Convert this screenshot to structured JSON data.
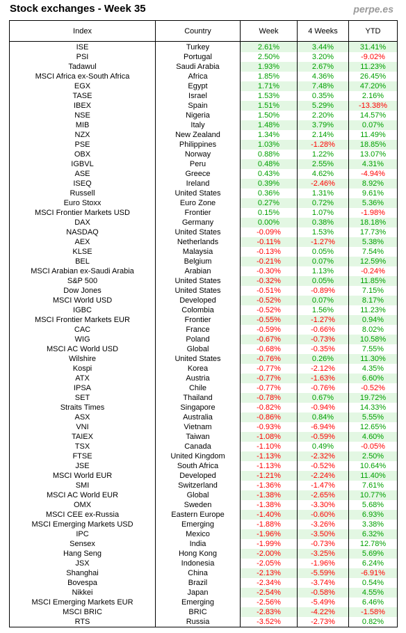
{
  "title": "Stock exchanges - Week 35",
  "brand": "perpe.es",
  "colors": {
    "positive": "#00a000",
    "negative": "#ff0000",
    "stripe": "#e3f7e3"
  },
  "headers": {
    "index": "Index",
    "country": "Country",
    "week": "Week",
    "four_weeks": "4 Weeks",
    "ytd": "YTD"
  },
  "rows": [
    [
      "ISE",
      "Turkey",
      "2.61%",
      "3.44%",
      "31.41%"
    ],
    [
      "PSI",
      "Portugal",
      "2.50%",
      "3.20%",
      "-9.02%"
    ],
    [
      "Tadawul",
      "Saudi Arabia",
      "1.93%",
      "2.67%",
      "11.23%"
    ],
    [
      "MSCI Africa ex-South Africa",
      "Africa",
      "1.85%",
      "4.36%",
      "26.45%"
    ],
    [
      "EGX",
      "Egypt",
      "1.71%",
      "7.48%",
      "47.20%"
    ],
    [
      "TASE",
      "Israel",
      "1.53%",
      "0.35%",
      "2.16%"
    ],
    [
      "IBEX",
      "Spain",
      "1.51%",
      "5.29%",
      "-13.38%"
    ],
    [
      "NSE",
      "Nigeria",
      "1.50%",
      "2.20%",
      "14.57%"
    ],
    [
      "MIB",
      "Italy",
      "1.48%",
      "3.79%",
      "0.07%"
    ],
    [
      "NZX",
      "New Zealand",
      "1.34%",
      "2.14%",
      "11.49%"
    ],
    [
      "PSE",
      "Philippines",
      "1.03%",
      "-1.28%",
      "18.85%"
    ],
    [
      "OBX",
      "Norway",
      "0.88%",
      "1.22%",
      "13.07%"
    ],
    [
      "IGBVL",
      "Peru",
      "0.48%",
      "2.55%",
      "4.31%"
    ],
    [
      "ASE",
      "Greece",
      "0.43%",
      "4.62%",
      "-4.94%"
    ],
    [
      "ISEQ",
      "Ireland",
      "0.39%",
      "-2.46%",
      "8.92%"
    ],
    [
      "Russell",
      "United States",
      "0.36%",
      "1.31%",
      "9.61%"
    ],
    [
      "Euro Stoxx",
      "Euro Zone",
      "0.27%",
      "0.72%",
      "5.36%"
    ],
    [
      "MSCI Frontier Markets USD",
      "Frontier",
      "0.15%",
      "1.07%",
      "-1.98%"
    ],
    [
      "DAX",
      "Germany",
      "0.00%",
      "0.38%",
      "18.18%"
    ],
    [
      "NASDAQ",
      "United States",
      "-0.09%",
      "1.53%",
      "17.73%"
    ],
    [
      "AEX",
      "Netherlands",
      "-0.11%",
      "-1.27%",
      "5.38%"
    ],
    [
      "KLSE",
      "Malaysia",
      "-0.13%",
      "0.05%",
      "7.54%"
    ],
    [
      "BEL",
      "Belgium",
      "-0.21%",
      "0.07%",
      "12.59%"
    ],
    [
      "MSCI Arabian ex-Saudi Arabia",
      "Arabian",
      "-0.30%",
      "1.13%",
      "-0.24%"
    ],
    [
      "S&P 500",
      "United States",
      "-0.32%",
      "0.05%",
      "11.85%"
    ],
    [
      "Dow Jones",
      "United States",
      "-0.51%",
      "-0.89%",
      "7.15%"
    ],
    [
      "MSCI World USD",
      "Developed",
      "-0.52%",
      "0.07%",
      "8.17%"
    ],
    [
      "IGBC",
      "Colombia",
      "-0.52%",
      "1.56%",
      "11.23%"
    ],
    [
      "MSCI Frontier Markets EUR",
      "Frontier",
      "-0.55%",
      "-1.27%",
      "0.94%"
    ],
    [
      "CAC",
      "France",
      "-0.59%",
      "-0.66%",
      "8.02%"
    ],
    [
      "WIG",
      "Poland",
      "-0.67%",
      "-0.73%",
      "10.58%"
    ],
    [
      "MSCI AC World USD",
      "Global",
      "-0.68%",
      "-0.35%",
      "7.55%"
    ],
    [
      "Wilshire",
      "United States",
      "-0.76%",
      "0.26%",
      "11.30%"
    ],
    [
      "Kospi",
      "Korea",
      "-0.77%",
      "-2.12%",
      "4.35%"
    ],
    [
      "ATX",
      "Austria",
      "-0.77%",
      "-1.63%",
      "6.60%"
    ],
    [
      "IPSA",
      "Chile",
      "-0.77%",
      "-0.76%",
      "-0.52%"
    ],
    [
      "SET",
      "Thailand",
      "-0.78%",
      "0.67%",
      "19.72%"
    ],
    [
      "Straits Times",
      "Singapore",
      "-0.82%",
      "-0.94%",
      "14.33%"
    ],
    [
      "ASX",
      "Australia",
      "-0.86%",
      "0.84%",
      "5.55%"
    ],
    [
      "VNI",
      "Vietnam",
      "-0.93%",
      "-6.94%",
      "12.65%"
    ],
    [
      "TAIEX",
      "Taiwan",
      "-1.08%",
      "-0.59%",
      "4.60%"
    ],
    [
      "TSX",
      "Canada",
      "-1.10%",
      "0.49%",
      "-0.05%"
    ],
    [
      "FTSE",
      "United Kingdom",
      "-1.13%",
      "-2.32%",
      "2.50%"
    ],
    [
      "JSE",
      "South Africa",
      "-1.13%",
      "-0.52%",
      "10.64%"
    ],
    [
      "MSCI World EUR",
      "Developed",
      "-1.21%",
      "-2.24%",
      "11.40%"
    ],
    [
      "SMI",
      "Switzerland",
      "-1.36%",
      "-1.47%",
      "7.61%"
    ],
    [
      "MSCI AC World EUR",
      "Global",
      "-1.38%",
      "-2.65%",
      "10.77%"
    ],
    [
      "OMX",
      "Sweden",
      "-1.38%",
      "-3.30%",
      "5.68%"
    ],
    [
      "MSCI CEE ex-Russia",
      "Eastern Europe",
      "-1.40%",
      "-0.60%",
      "6.93%"
    ],
    [
      "MSCI Emerging Markets USD",
      "Emerging",
      "-1.88%",
      "-3.26%",
      "3.38%"
    ],
    [
      "IPC",
      "Mexico",
      "-1.96%",
      "-3.50%",
      "6.32%"
    ],
    [
      "Sensex",
      "India",
      "-1.99%",
      "-0.73%",
      "12.78%"
    ],
    [
      "Hang Seng",
      "Hong Kong",
      "-2.00%",
      "-3.25%",
      "5.69%"
    ],
    [
      "JSX",
      "Indonesia",
      "-2.05%",
      "-1.96%",
      "6.24%"
    ],
    [
      "Shanghai",
      "China",
      "-2.13%",
      "-5.59%",
      "-6.91%"
    ],
    [
      "Bovespa",
      "Brazil",
      "-2.34%",
      "-3.74%",
      "0.54%"
    ],
    [
      "Nikkei",
      "Japan",
      "-2.54%",
      "-0.58%",
      "4.55%"
    ],
    [
      "MSCI Emerging Markets EUR",
      "Emerging",
      "-2.56%",
      "-5.49%",
      "6.46%"
    ],
    [
      "MSCI BRIC",
      "BRIC",
      "-2.83%",
      "-4.22%",
      "-1.58%"
    ],
    [
      "RTS",
      "Russia",
      "-3.52%",
      "-2.73%",
      "0.82%"
    ]
  ]
}
